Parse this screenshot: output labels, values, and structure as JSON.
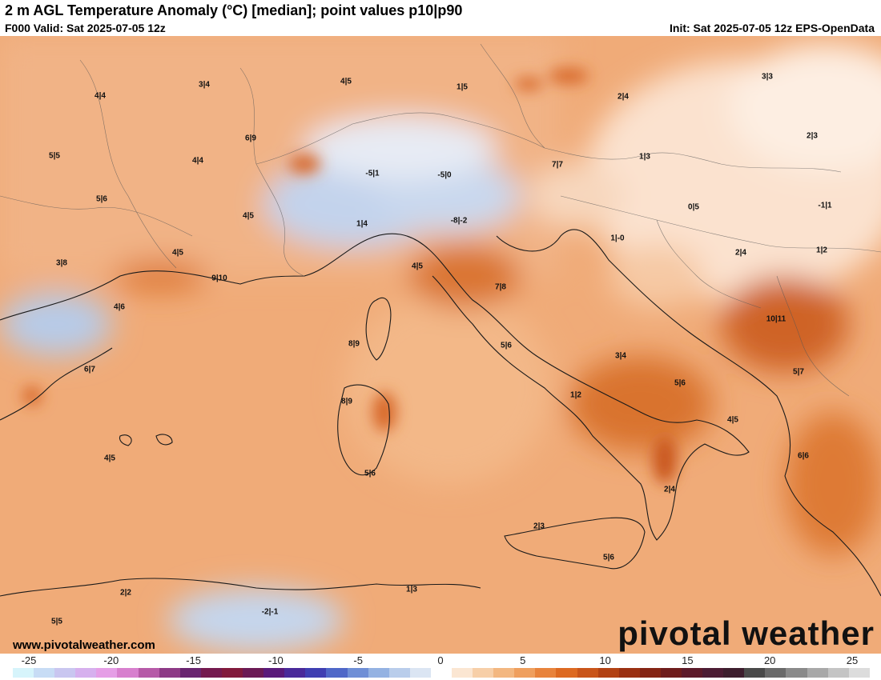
{
  "header": {
    "title": "2 m AGL Temperature Anomaly (°C) [median]; point values p10|p90",
    "valid": "F000 Valid: Sat 2025-07-05 12z",
    "init": "Init: Sat 2025-07-05 12z EPS-OpenData"
  },
  "footer": {
    "url": "www.pivotalweather.com",
    "brand": "pivotal weather"
  },
  "map_points": [
    {
      "label": "4|4"
    },
    {
      "label": "3|4"
    },
    {
      "label": "4|5"
    },
    {
      "label": "1|5"
    },
    {
      "label": "2|4"
    },
    {
      "label": "3|3"
    },
    {
      "label": "5|5"
    },
    {
      "label": "6|9"
    },
    {
      "label": "4|4"
    },
    {
      "label": "-5|1"
    },
    {
      "label": "-5|0"
    },
    {
      "label": "7|7"
    },
    {
      "label": "1|3"
    },
    {
      "label": "2|3"
    },
    {
      "label": "5|6"
    },
    {
      "label": "4|5"
    },
    {
      "label": "1|4"
    },
    {
      "label": "-8|-2"
    },
    {
      "label": "0|5"
    },
    {
      "label": "-1|1"
    },
    {
      "label": "3|8"
    },
    {
      "label": "4|5"
    },
    {
      "label": "9|10"
    },
    {
      "label": "4|5"
    },
    {
      "label": "1|-0"
    },
    {
      "label": "2|4"
    },
    {
      "label": "1|2"
    },
    {
      "label": "4|6"
    },
    {
      "label": "7|8"
    },
    {
      "label": "10|11"
    },
    {
      "label": "8|9"
    },
    {
      "label": "5|6"
    },
    {
      "label": "3|4"
    },
    {
      "label": "6|7"
    },
    {
      "label": "5|7"
    },
    {
      "label": "5|6"
    },
    {
      "label": "8|9"
    },
    {
      "label": "1|2"
    },
    {
      "label": "4|5"
    },
    {
      "label": "4|5"
    },
    {
      "label": "5|6"
    },
    {
      "label": "6|6"
    },
    {
      "label": "2|4"
    },
    {
      "label": "2|3"
    },
    {
      "label": "5|6"
    },
    {
      "label": "2|2"
    },
    {
      "label": "1|3"
    },
    {
      "label": "-2|-1"
    },
    {
      "label": "5|5"
    }
  ],
  "colorbar": {
    "ticks": [
      "-25",
      "-20",
      "-15",
      "-10",
      "-5",
      "0",
      "5",
      "10",
      "15",
      "20",
      "25"
    ],
    "colors": [
      "#d6f4fb",
      "#c7dcf5",
      "#c9c6f0",
      "#d6b0ee",
      "#e59ee6",
      "#d77fce",
      "#b65aa8",
      "#8d3a86",
      "#6a2570",
      "#741a4f",
      "#811a3c",
      "#6b1a55",
      "#5a1a7a",
      "#4a2a9a",
      "#3f3fb2",
      "#4f68c8",
      "#6f8fd6",
      "#94b2e2",
      "#b9cdeb",
      "#dbe5f3",
      "#ffffff",
      "#fbe6d2",
      "#f7cfa8",
      "#f3b780",
      "#ef9f5e",
      "#e8833c",
      "#dd6a22",
      "#c9551a",
      "#b24214",
      "#9a3012",
      "#842414",
      "#6e1c1c",
      "#5c1a2a",
      "#4c1c34",
      "#3d1e2e",
      "#4a4a4a",
      "#6a6a6a",
      "#8a8a8a",
      "#a8a8a8",
      "#c4c4c4",
      "#dcdcdc"
    ]
  }
}
